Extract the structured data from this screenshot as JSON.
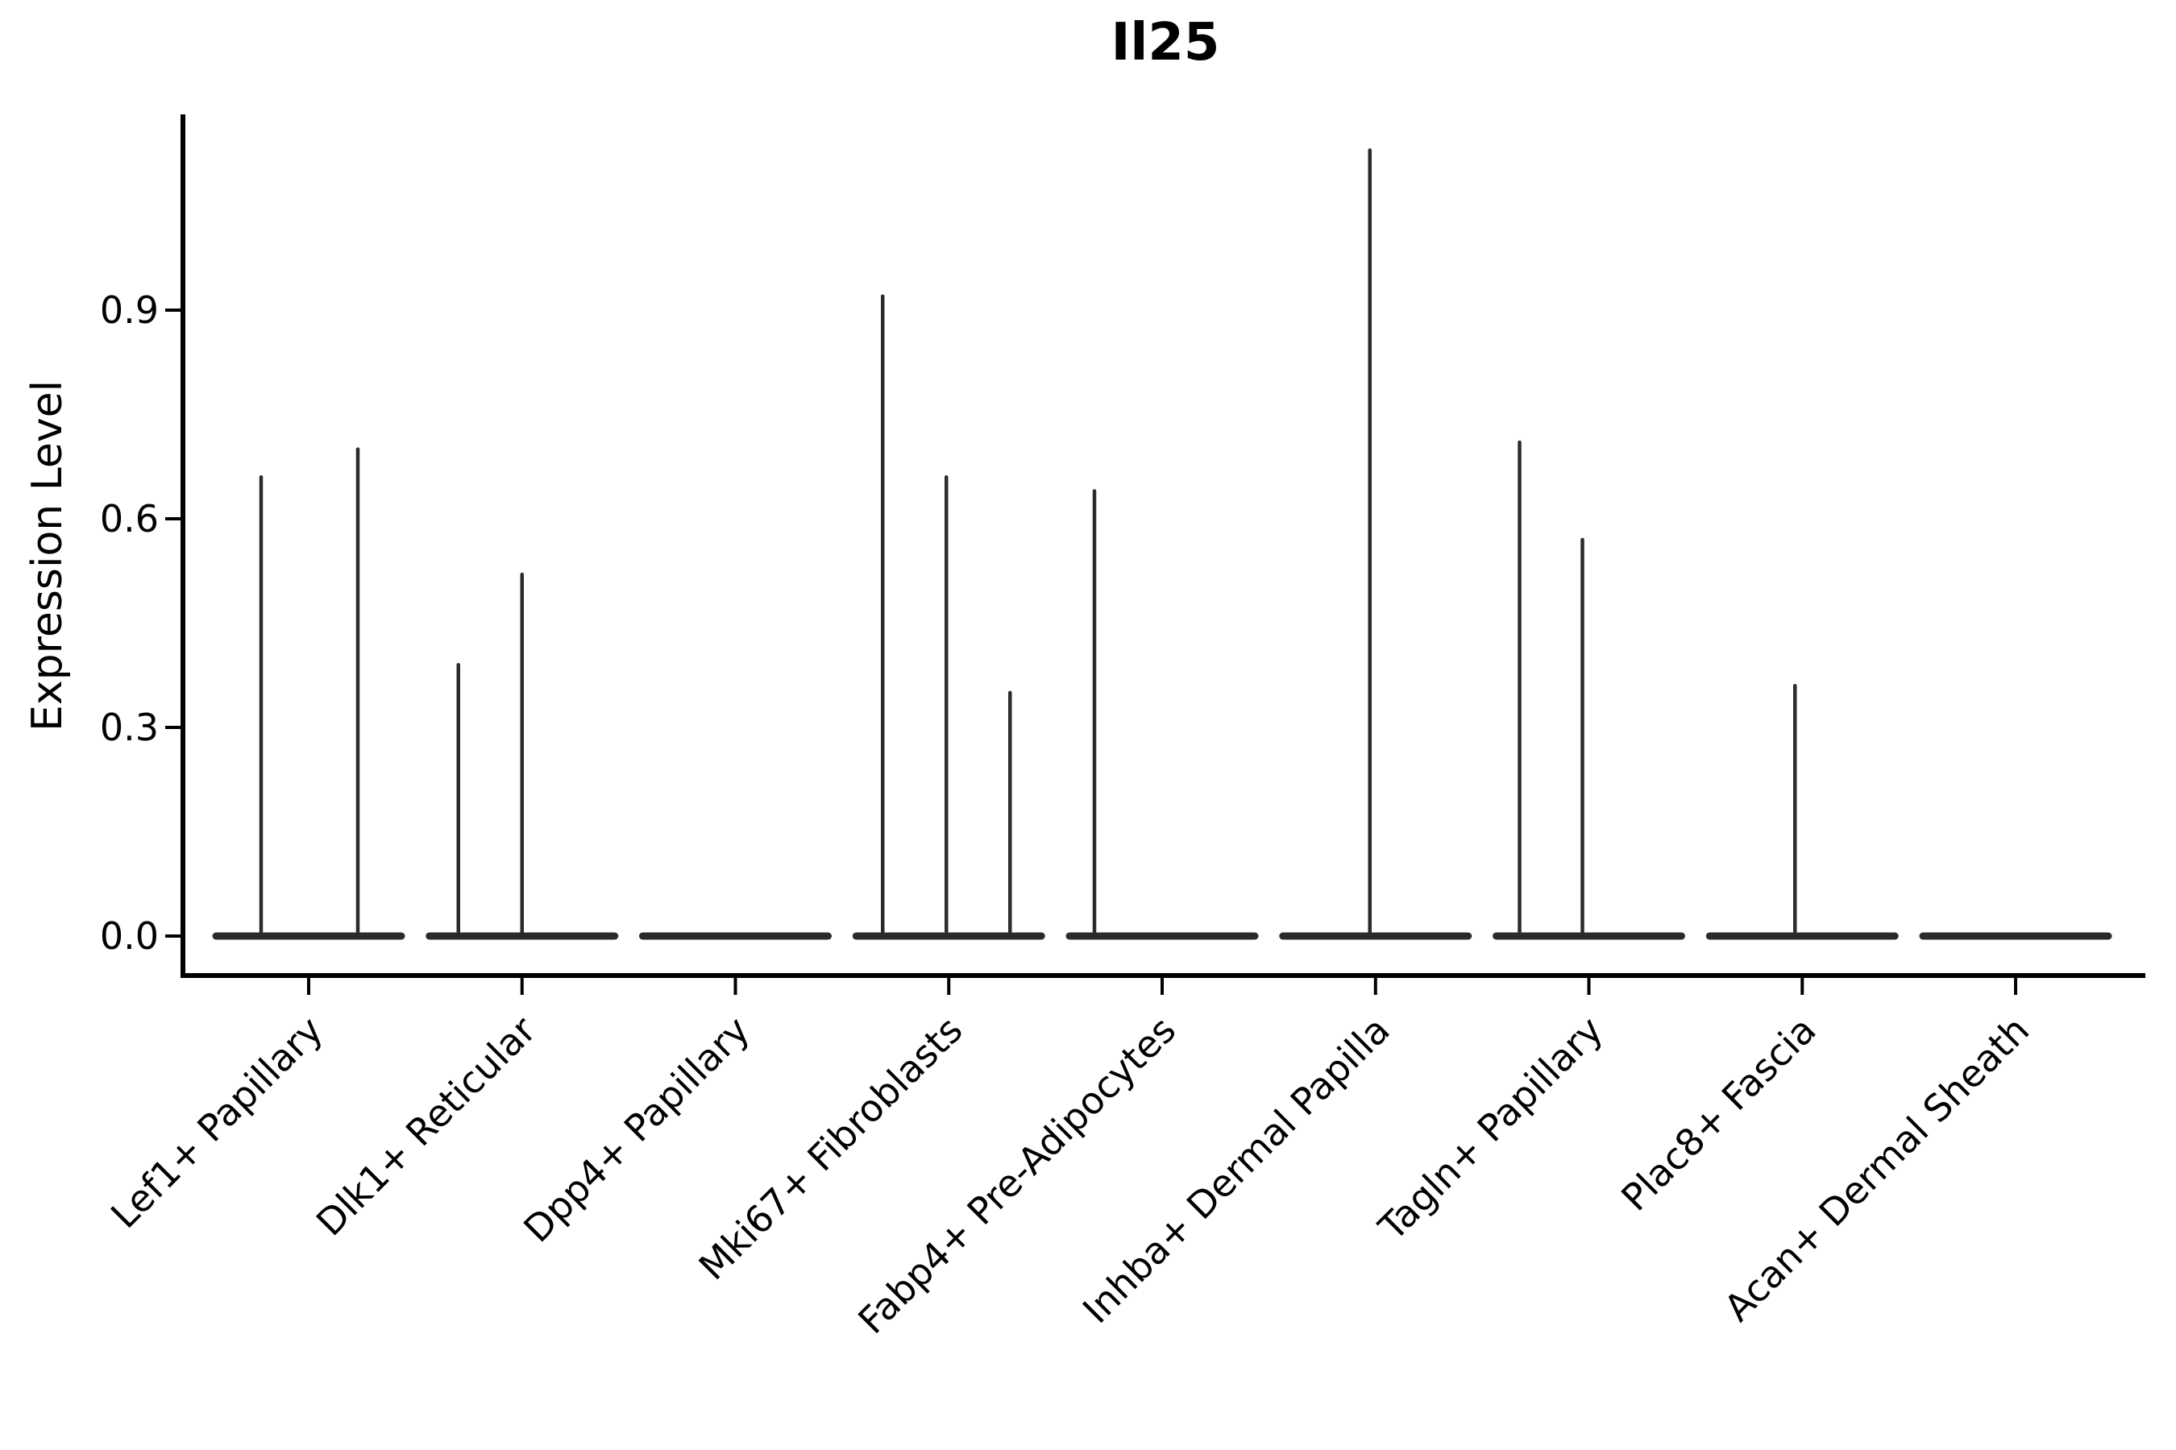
{
  "chart_data": {
    "type": "violin",
    "title": "Il25",
    "ylabel": "Expression Level",
    "xlabel": "",
    "ylim": [
      -0.057,
      1.18
    ],
    "grid": false,
    "legend": "none",
    "violin_color": "#2b2b2b",
    "axis_color": "#000000",
    "yticks": [
      {
        "label": "0.0",
        "value": 0.0
      },
      {
        "label": "0.3",
        "value": 0.3
      },
      {
        "label": "0.6",
        "value": 0.6
      },
      {
        "label": "0.9",
        "value": 0.9
      }
    ],
    "categories": [
      {
        "label": "Lef1+ Papillary",
        "spikes": [
          {
            "dx": -59,
            "value": 0.66
          },
          {
            "dx": 61,
            "value": 0.7
          }
        ]
      },
      {
        "label": "Dlk1+ Reticular",
        "spikes": [
          {
            "dx": -79,
            "value": 0.39
          },
          {
            "dx": 0,
            "value": 0.52
          }
        ]
      },
      {
        "label": "Dpp4+ Papillary",
        "spikes": []
      },
      {
        "label": "Mki67+ Fibroblasts",
        "spikes": [
          {
            "dx": -82,
            "value": 0.92
          },
          {
            "dx": -3,
            "value": 0.66
          },
          {
            "dx": 76,
            "value": 0.35
          }
        ]
      },
      {
        "label": "Fabp4+ Pre-Adipocytes",
        "spikes": [
          {
            "dx": -84,
            "value": 0.64
          }
        ]
      },
      {
        "label": "Inhba+ Dermal Papilla",
        "spikes": [
          {
            "dx": -7,
            "value": 1.13
          }
        ]
      },
      {
        "label": "Tagln+ Papillary",
        "spikes": [
          {
            "dx": -86,
            "value": 0.71
          },
          {
            "dx": -8,
            "value": 0.57
          }
        ]
      },
      {
        "label": "Plac8+ Fascia",
        "spikes": [
          {
            "dx": -9,
            "value": 0.36
          }
        ]
      },
      {
        "label": "Acan+ Dermal Sheath",
        "spikes": []
      }
    ]
  }
}
